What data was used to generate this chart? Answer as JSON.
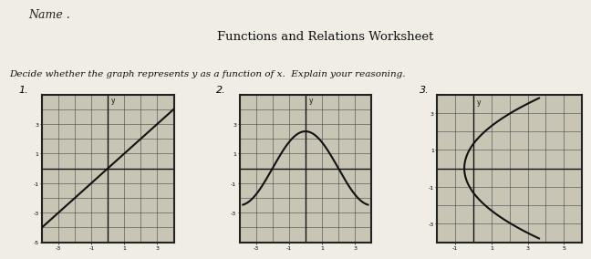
{
  "title": "Functions and Relations Worksheet",
  "subtitle": "Decide whether the graph represents y as a function of x.  Explain your reasoning.",
  "name_label": "Name .",
  "graph_labels": [
    "1.",
    "2.",
    "3."
  ],
  "paper_bg": "#f0ede4",
  "graph_bg": "#c8c5b5",
  "grid_color": "#444444",
  "line_color": "#111111",
  "graph1_xlim": [
    -4,
    4
  ],
  "graph1_ylim": [
    -5,
    5
  ],
  "graph2_xlim": [
    -4,
    4
  ],
  "graph2_ylim": [
    -5,
    5
  ],
  "graph3_xlim": [
    -2,
    6
  ],
  "graph3_ylim": [
    -4,
    4
  ],
  "xticks": [
    -3,
    -1,
    1,
    3
  ],
  "yticks": [
    -3,
    -1,
    1,
    3
  ]
}
